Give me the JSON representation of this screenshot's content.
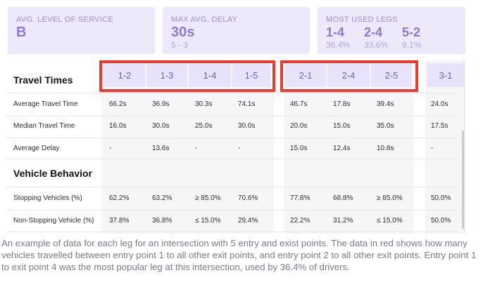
{
  "cards": {
    "avg_los": {
      "label": "AVG. LEVEL OF SERVICE",
      "value": "B"
    },
    "max_delay": {
      "label": "MAX AVG. DELAY",
      "value": "30s",
      "sub": "5 - 3"
    },
    "most_used": {
      "label": "MOST USED LEGS",
      "legs": [
        {
          "leg": "1-4",
          "pct": "36.4%"
        },
        {
          "leg": "2-4",
          "pct": "33.6%"
        },
        {
          "leg": "5-2",
          "pct": "9.1%"
        }
      ]
    }
  },
  "table": {
    "section1": "Travel Times",
    "section2": "Vehicle Behavior",
    "columns": [
      "1-2",
      "1-3",
      "1-4",
      "1-5",
      "2-1",
      "2-4",
      "2-5",
      "3-1"
    ],
    "rows": [
      {
        "label": "Average Travel Time",
        "values": [
          "66.2s",
          "36.9s",
          "30.3s",
          "74.1s",
          "46.7s",
          "17.8s",
          "39.4s",
          "24.0s"
        ]
      },
      {
        "label": "Median Travel Time",
        "values": [
          "16.0s",
          "30.0s",
          "25.0s",
          "30.0s",
          "20.0s",
          "15.0s",
          "35.0s",
          "17.5s"
        ]
      },
      {
        "label": "Average Delay",
        "values": [
          "-",
          "13.6s",
          "-",
          "-",
          "15.0s",
          "12.4s",
          "10.8s",
          "-"
        ]
      },
      {
        "label": "Stopping Vehicles (%)",
        "values": [
          "62.2%",
          "63.2%",
          "≥ 85.0%",
          "70.6%",
          "77.8%",
          "68.8%",
          "≥ 85.0%",
          "50.0%"
        ]
      },
      {
        "label": "Non-Stopping Vehicle (%)",
        "values": [
          "37.8%",
          "36.8%",
          "≤ 15.0%",
          "29.4%",
          "22.2%",
          "31.2%",
          "≤ 15.0%",
          "50.0%"
        ]
      }
    ]
  },
  "caption": "An example of data for each leg for an intersection with 5 entry and exist points. The data in red shows how many vehicles travelled between entry point 1 to all other exit points, and entry point 2 to all other exit points. Entry point 1 to exit point 4 was the most popular leg at this intersection, used by 36.4% of drivers.",
  "colors": {
    "accent": "#8a7ad8",
    "highlight": "#ea3b2c",
    "card_bg": "#ede9fb"
  }
}
